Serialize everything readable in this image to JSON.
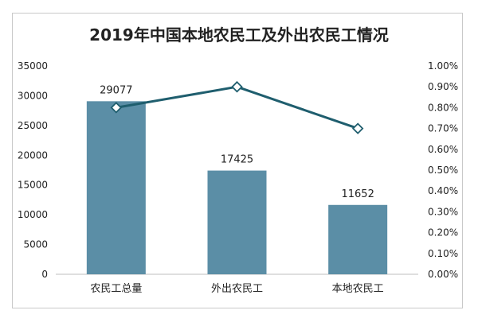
{
  "chart_data": {
    "type": "bar",
    "title": "2019年中国本地农民工及外出农民工情况",
    "categories": [
      "农民工总量",
      "外出农民工",
      "本地农民工"
    ],
    "series": [
      {
        "type": "bar",
        "axis": "left",
        "color": "#5b8ea6",
        "values": [
          29077,
          17425,
          11652
        ],
        "data_labels": [
          "29077",
          "17425",
          "11652"
        ]
      },
      {
        "type": "line",
        "axis": "right",
        "color": "#1f5e6e",
        "marker": "diamond",
        "values": [
          0.008,
          0.009,
          0.007
        ]
      }
    ],
    "y_left": {
      "lim": [
        0,
        35000
      ],
      "ticks": [
        "0",
        "5000",
        "10000",
        "15000",
        "20000",
        "25000",
        "30000",
        "35000"
      ]
    },
    "y_right": {
      "lim": [
        0,
        0.01
      ],
      "ticks": [
        "0.00%",
        "0.10%",
        "0.20%",
        "0.30%",
        "0.40%",
        "0.50%",
        "0.60%",
        "0.70%",
        "0.80%",
        "0.90%",
        "1.00%"
      ]
    },
    "grid": false,
    "legend": "none"
  }
}
